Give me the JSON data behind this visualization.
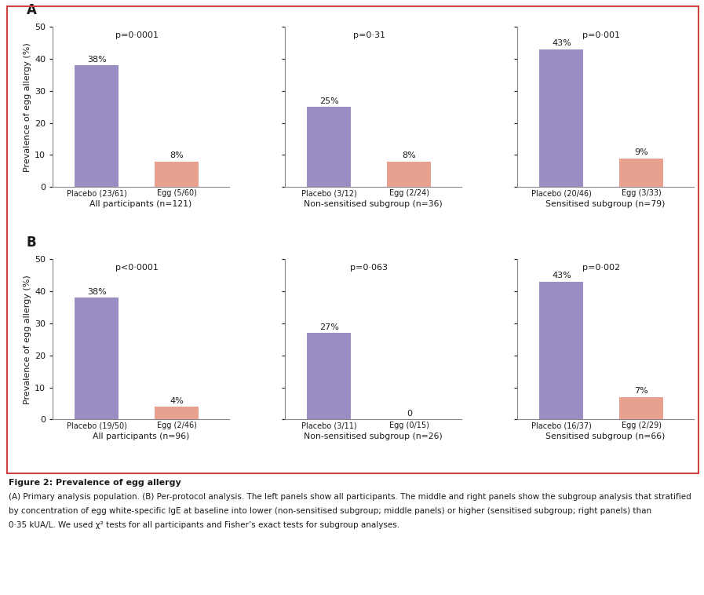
{
  "panels": [
    {
      "row": 0,
      "col": 0,
      "label": "A",
      "p_value": "p=0·0001",
      "bars": [
        {
          "x_label": "Placebo (23/61)",
          "value": 38,
          "pct_label": "38%",
          "color": "#9b8ec4"
        },
        {
          "x_label": "Egg (5/60)",
          "value": 8,
          "pct_label": "8%",
          "color": "#e8a090"
        }
      ],
      "xlabel": "All participants (n=121)"
    },
    {
      "row": 0,
      "col": 1,
      "label": null,
      "p_value": "p=0·31",
      "bars": [
        {
          "x_label": "Placebo (3/12)",
          "value": 25,
          "pct_label": "25%",
          "color": "#9b8ec4"
        },
        {
          "x_label": "Egg (2/24)",
          "value": 8,
          "pct_label": "8%",
          "color": "#e8a090"
        }
      ],
      "xlabel": "Non-sensitised subgroup (n=36)"
    },
    {
      "row": 0,
      "col": 2,
      "label": null,
      "p_value": "p=0·001",
      "bars": [
        {
          "x_label": "Placebo (20/46)",
          "value": 43,
          "pct_label": "43%",
          "color": "#9b8ec4"
        },
        {
          "x_label": "Egg (3/33)",
          "value": 9,
          "pct_label": "9%",
          "color": "#e8a090"
        }
      ],
      "xlabel": "Sensitised subgroup (n=79)"
    },
    {
      "row": 1,
      "col": 0,
      "label": "B",
      "p_value": "p<0·0001",
      "bars": [
        {
          "x_label": "Placebo (19/50)",
          "value": 38,
          "pct_label": "38%",
          "color": "#9b8ec4"
        },
        {
          "x_label": "Egg (2/46)",
          "value": 4,
          "pct_label": "4%",
          "color": "#e8a090"
        }
      ],
      "xlabel": "All participants (n=96)"
    },
    {
      "row": 1,
      "col": 1,
      "label": null,
      "p_value": "p=0·063",
      "bars": [
        {
          "x_label": "Placebo (3/11)",
          "value": 27,
          "pct_label": "27%",
          "color": "#9b8ec4"
        },
        {
          "x_label": "Egg (0/15)",
          "value": 0,
          "pct_label": "0",
          "color": "#e8a090"
        }
      ],
      "xlabel": "Non-sensitised subgroup (n=26)"
    },
    {
      "row": 1,
      "col": 2,
      "label": null,
      "p_value": "p=0·002",
      "bars": [
        {
          "x_label": "Placebo (16/37)",
          "value": 43,
          "pct_label": "43%",
          "color": "#9b8ec4"
        },
        {
          "x_label": "Egg (2/29)",
          "value": 7,
          "pct_label": "7%",
          "color": "#e8a090"
        }
      ],
      "xlabel": "Sensitised subgroup (n=66)"
    }
  ],
  "ylabel": "Prevalence of egg allergy (%)",
  "ylim": [
    0,
    50
  ],
  "yticks": [
    0,
    10,
    20,
    30,
    40,
    50
  ],
  "bar_width": 0.55,
  "bar_positions": [
    0.65,
    1.65
  ],
  "xlim": [
    0.1,
    2.3
  ],
  "figure_caption_bold": "Figure 2: Prevalence of egg allergy",
  "figure_caption_line1": "(A) Primary analysis population. (B) Per-protocol analysis. The left panels show all participants. The middle and right panels show the subgroup analysis that stratified",
  "figure_caption_line2": "by concentration of egg white-specific IgE at baseline into lower (non-sensitised subgroup; middle panels) or higher (sensitised subgroup; right panels) than",
  "figure_caption_line3": "0·35 kUA/L. We used χ² tests for all participants and Fisher’s exact tests for subgroup analyses.",
  "bg_color": "#ffffff",
  "border_color": "#d04040",
  "text_color": "#1a1a1a",
  "spine_color": "#888888"
}
